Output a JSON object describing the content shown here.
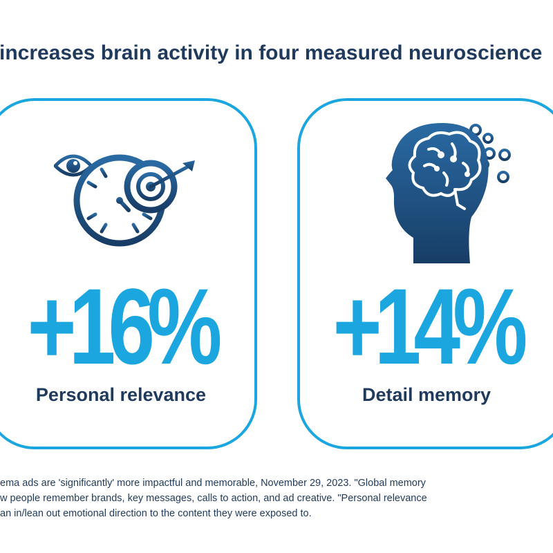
{
  "headline": "a increases brain activity in four measured neuroscience",
  "cards": [
    {
      "icon": "clock-eye-target-icon",
      "value": "+16%",
      "label": "Personal relevance"
    },
    {
      "icon": "head-brain-bubbles-icon",
      "value": "+14%",
      "label": "Detail memory"
    }
  ],
  "footnote": {
    "line1": "ema ads are 'significantly' more impactful and memorable, November 29, 2023. \"Global memory",
    "line2": "w people remember brands, key messages, calls to action, and ad creative. \"Personal relevance",
    "line3": "an in/lean out emotional direction to the content they were exposed to."
  },
  "colors": {
    "accent": "#1ba6df",
    "navy": "#1f3a5c",
    "icon_dark": "#1d4a73"
  }
}
